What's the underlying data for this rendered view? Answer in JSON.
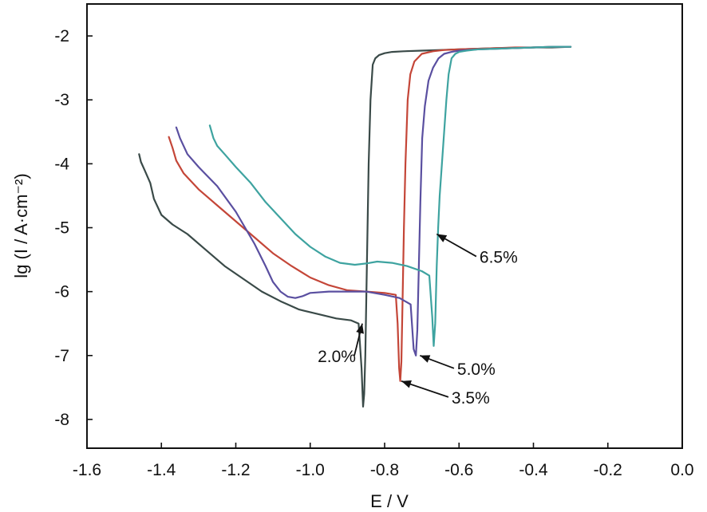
{
  "chart_data": {
    "type": "line",
    "xlabel": "E / V",
    "ylabel": "lg (I / A·cm⁻²)",
    "xlim": [
      -1.6,
      0.0
    ],
    "ylim": [
      -8.45,
      -1.5
    ],
    "xticks": [
      -1.6,
      -1.4,
      -1.2,
      -1.0,
      -0.8,
      -0.6,
      -0.4,
      -0.2,
      0.0
    ],
    "xtick_labels": [
      "-1.6",
      "-1.4",
      "-1.2",
      "-1.0",
      "-0.8",
      "-0.6",
      "-0.4",
      "-0.2",
      "0.0"
    ],
    "yticks": [
      -2,
      -3,
      -4,
      -5,
      -6,
      -7,
      -8
    ],
    "ytick_labels": [
      "-2",
      "-3",
      "-4",
      "-5",
      "-6",
      "-7",
      "-8"
    ],
    "grid": false,
    "series": [
      {
        "name": "2.0%",
        "color": "#3a4a48",
        "x": [
          -1.46,
          -1.455,
          -1.445,
          -1.43,
          -1.42,
          -1.4,
          -1.37,
          -1.33,
          -1.28,
          -1.23,
          -1.18,
          -1.13,
          -1.08,
          -1.03,
          -0.98,
          -0.93,
          -0.89,
          -0.87,
          -0.862,
          -0.858,
          -0.855,
          -0.852,
          -0.849,
          -0.846,
          -0.843,
          -0.838,
          -0.832,
          -0.825,
          -0.815,
          -0.8,
          -0.78,
          -0.75,
          -0.7,
          -0.65,
          -0.6,
          -0.55,
          -0.5,
          -0.45,
          -0.4,
          -0.35,
          -0.3
        ],
        "y": [
          -3.85,
          -3.97,
          -4.1,
          -4.3,
          -4.55,
          -4.8,
          -4.95,
          -5.1,
          -5.35,
          -5.6,
          -5.8,
          -6.0,
          -6.15,
          -6.28,
          -6.35,
          -6.42,
          -6.45,
          -6.5,
          -7.2,
          -7.8,
          -7.6,
          -7.0,
          -6.0,
          -5.0,
          -4.0,
          -3.0,
          -2.45,
          -2.35,
          -2.3,
          -2.27,
          -2.25,
          -2.24,
          -2.23,
          -2.22,
          -2.21,
          -2.2,
          -2.19,
          -2.19,
          -2.18,
          -2.18,
          -2.17
        ]
      },
      {
        "name": "3.5%",
        "color": "#c44638",
        "x": [
          -1.38,
          -1.37,
          -1.36,
          -1.34,
          -1.3,
          -1.25,
          -1.2,
          -1.15,
          -1.1,
          -1.05,
          -1.0,
          -0.95,
          -0.9,
          -0.85,
          -0.8,
          -0.77,
          -0.765,
          -0.761,
          -0.758,
          -0.755,
          -0.752,
          -0.748,
          -0.744,
          -0.738,
          -0.731,
          -0.72,
          -0.7,
          -0.67,
          -0.64,
          -0.6,
          -0.55,
          -0.5,
          -0.45,
          -0.4,
          -0.35,
          -0.3
        ],
        "y": [
          -3.58,
          -3.75,
          -3.95,
          -4.15,
          -4.4,
          -4.65,
          -4.9,
          -5.15,
          -5.4,
          -5.6,
          -5.78,
          -5.9,
          -5.98,
          -6.0,
          -6.02,
          -6.05,
          -6.5,
          -7.2,
          -7.4,
          -7.1,
          -6.2,
          -5.0,
          -4.0,
          -3.0,
          -2.6,
          -2.4,
          -2.28,
          -2.24,
          -2.22,
          -2.21,
          -2.2,
          -2.19,
          -2.18,
          -2.18,
          -2.17,
          -2.17
        ]
      },
      {
        "name": "5.0%",
        "color": "#5a4fa0",
        "x": [
          -1.36,
          -1.35,
          -1.33,
          -1.3,
          -1.25,
          -1.2,
          -1.15,
          -1.12,
          -1.1,
          -1.08,
          -1.06,
          -1.04,
          -1.02,
          -1.0,
          -0.95,
          -0.9,
          -0.85,
          -0.8,
          -0.76,
          -0.73,
          -0.722,
          -0.716,
          -0.712,
          -0.708,
          -0.704,
          -0.699,
          -0.692,
          -0.682,
          -0.67,
          -0.655,
          -0.64,
          -0.62,
          -0.6,
          -0.55,
          -0.5,
          -0.45,
          -0.4,
          -0.35,
          -0.3
        ],
        "y": [
          -3.43,
          -3.6,
          -3.85,
          -4.05,
          -4.35,
          -4.75,
          -5.25,
          -5.6,
          -5.85,
          -6.0,
          -6.08,
          -6.1,
          -6.07,
          -6.02,
          -6.0,
          -6.0,
          -6.0,
          -6.05,
          -6.1,
          -6.2,
          -6.9,
          -7.0,
          -6.6,
          -5.6,
          -4.6,
          -3.6,
          -3.1,
          -2.7,
          -2.5,
          -2.35,
          -2.28,
          -2.25,
          -2.23,
          -2.21,
          -2.2,
          -2.19,
          -2.18,
          -2.17,
          -2.17
        ]
      },
      {
        "name": "6.5%",
        "color": "#3ea3a0",
        "x": [
          -1.27,
          -1.265,
          -1.26,
          -1.25,
          -1.23,
          -1.2,
          -1.16,
          -1.12,
          -1.08,
          -1.04,
          -1.0,
          -0.96,
          -0.92,
          -0.88,
          -0.85,
          -0.82,
          -0.78,
          -0.74,
          -0.7,
          -0.68,
          -0.672,
          -0.668,
          -0.664,
          -0.66,
          -0.656,
          -0.652,
          -0.646,
          -0.64,
          -0.634,
          -0.628,
          -0.62,
          -0.61,
          -0.6,
          -0.58,
          -0.55,
          -0.5,
          -0.45,
          -0.4,
          -0.35,
          -0.3
        ],
        "y": [
          -3.4,
          -3.5,
          -3.6,
          -3.72,
          -3.85,
          -4.05,
          -4.3,
          -4.6,
          -4.85,
          -5.1,
          -5.3,
          -5.45,
          -5.55,
          -5.58,
          -5.56,
          -5.53,
          -5.55,
          -5.6,
          -5.68,
          -5.75,
          -6.4,
          -6.85,
          -6.5,
          -5.6,
          -5.0,
          -4.5,
          -4.0,
          -3.5,
          -3.0,
          -2.6,
          -2.35,
          -2.28,
          -2.25,
          -2.23,
          -2.21,
          -2.2,
          -2.19,
          -2.18,
          -2.17,
          -2.17
        ]
      }
    ],
    "annotations": [
      {
        "text": "2.0%",
        "target": [
          -0.86,
          -6.5
        ],
        "label_at": [
          -0.98,
          -7.1
        ]
      },
      {
        "text": "3.5%",
        "target": [
          -0.755,
          -7.4
        ],
        "label_at": [
          -0.62,
          -7.75
        ]
      },
      {
        "text": "5.0%",
        "target": [
          -0.705,
          -7.0
        ],
        "label_at": [
          -0.605,
          -7.3
        ]
      },
      {
        "text": "6.5%",
        "target": [
          -0.66,
          -5.1
        ],
        "label_at": [
          -0.545,
          -5.55
        ]
      }
    ]
  }
}
